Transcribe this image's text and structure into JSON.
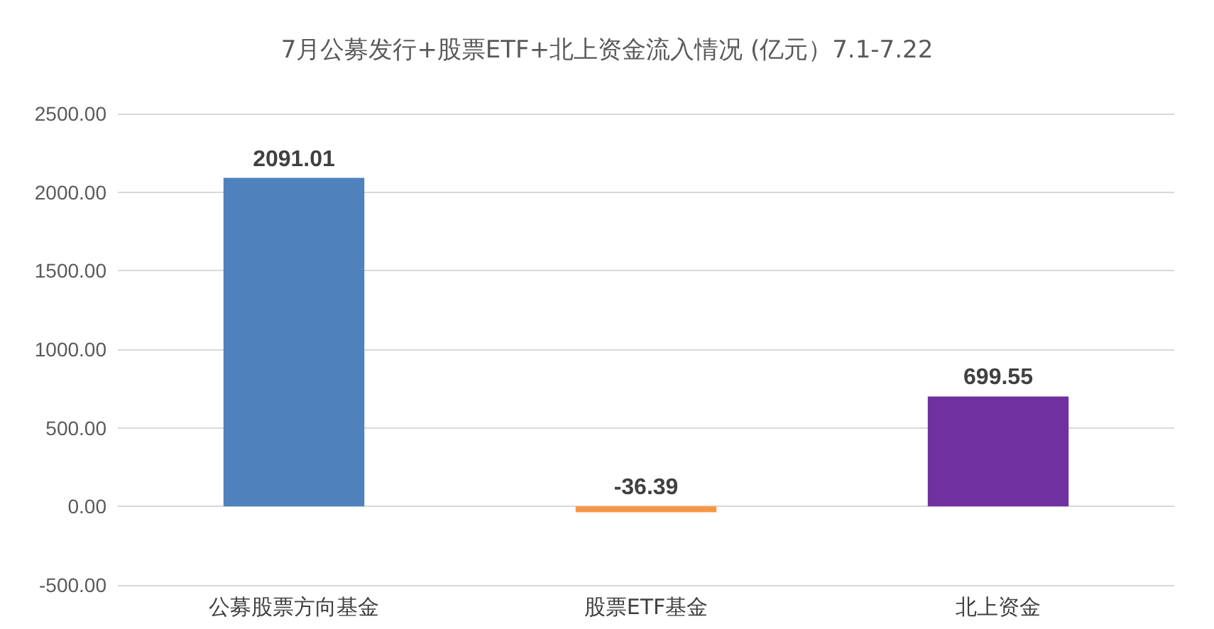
{
  "chart_data": {
    "type": "bar",
    "title": "7月公募发行+股票ETF+北上资金流入情况 (亿元）7.1-7.22",
    "categories": [
      "公募股票方向基金",
      "股票ETF基金",
      "北上资金"
    ],
    "values": [
      2091.01,
      -36.39,
      699.55
    ],
    "colors": [
      "#4f81bd",
      "#f79646",
      "#7030a0"
    ],
    "ylim": [
      -500,
      2500
    ],
    "yticks": [
      {
        "value": -500,
        "label": "-500.00"
      },
      {
        "value": 0,
        "label": "0.00"
      },
      {
        "value": 500,
        "label": "500.00"
      },
      {
        "value": 1000,
        "label": "1000.00"
      },
      {
        "value": 1500,
        "label": "1500.00"
      },
      {
        "value": 2000,
        "label": "2000.00"
      },
      {
        "value": 2500,
        "label": "2500.00"
      }
    ],
    "grid": true,
    "data_labels": true
  }
}
